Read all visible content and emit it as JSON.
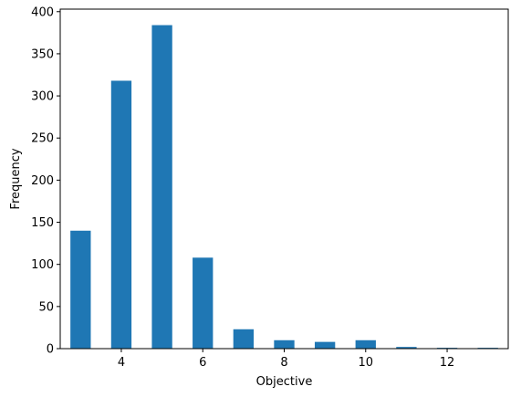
{
  "chart_data": {
    "type": "bar",
    "title": "",
    "xlabel": "Objective",
    "ylabel": "Frequency",
    "xlim": [
      2.5,
      13.5
    ],
    "ylim": [
      0,
      403
    ],
    "x": [
      3,
      4,
      5,
      6,
      7,
      8,
      9,
      10,
      11,
      12,
      13
    ],
    "values": [
      140,
      318,
      384,
      108,
      23,
      10,
      8,
      10,
      2,
      1,
      1
    ],
    "bar_width": 0.5,
    "xticks": [
      4,
      6,
      8,
      10,
      12
    ],
    "yticks": [
      0,
      50,
      100,
      150,
      200,
      250,
      300,
      350,
      400
    ],
    "grid": false,
    "colors": {
      "bar": "#1f77b4",
      "axis": "#000000"
    }
  }
}
